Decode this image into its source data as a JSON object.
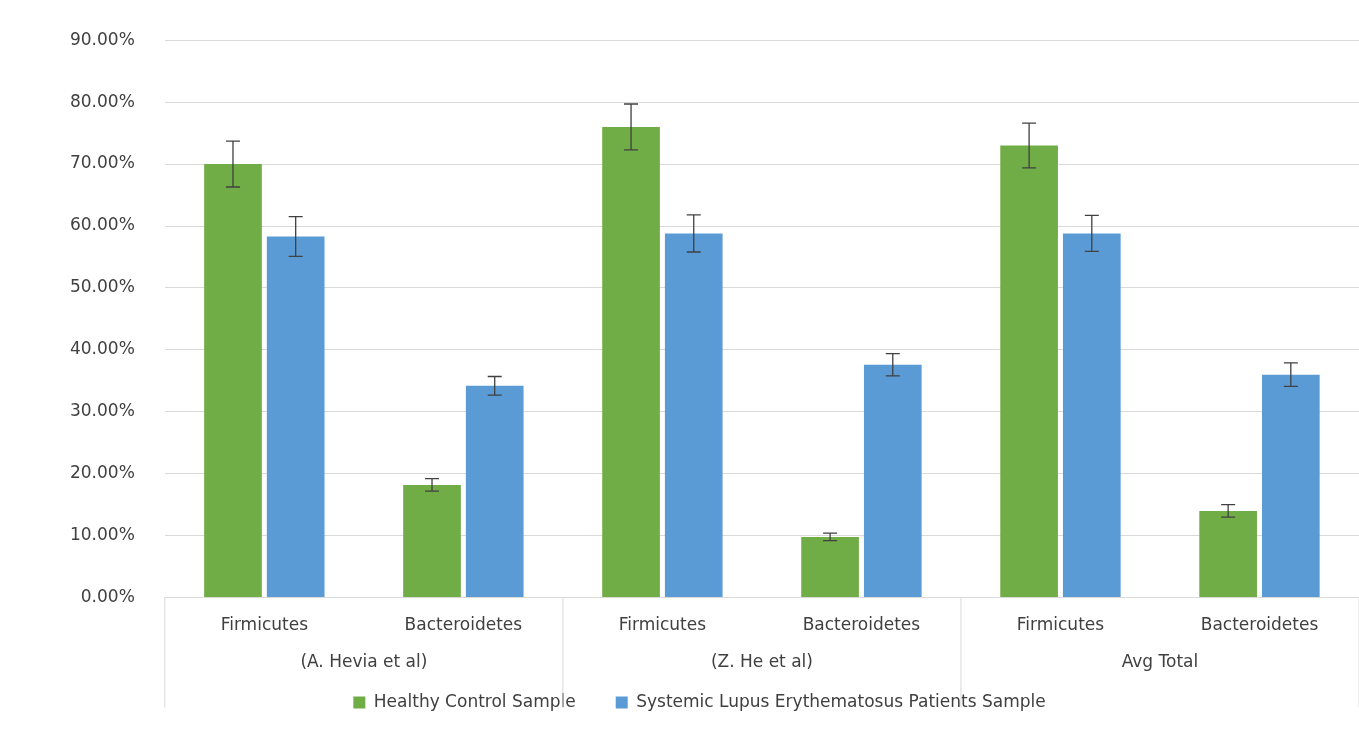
{
  "chart_data": {
    "type": "bar",
    "categories": [
      "Firmicutes",
      "Bacteroidetes",
      "Firmicutes",
      "Bacteroidetes",
      "Firmicutes",
      "Bacteroidetes"
    ],
    "annotations": [
      "(A. Hevia et al)",
      "(Z. He et al)",
      "Avg Total"
    ],
    "series": [
      {
        "name": "Healthy Control Sample",
        "color": "#70ad47",
        "values": [
          70.0,
          18.2,
          76.0,
          9.8,
          73.0,
          14.0
        ],
        "errors": [
          3.7,
          1.0,
          3.7,
          0.6,
          3.6,
          1.0
        ]
      },
      {
        "name": "Systemic Lupus Erythematosus Patients Sample",
        "color": "#5b9bd5",
        "values": [
          58.3,
          34.2,
          58.8,
          37.6,
          58.8,
          36.0
        ],
        "errors": [
          3.2,
          1.5,
          3.0,
          1.8,
          2.9,
          1.9
        ]
      }
    ],
    "ylim": [
      0,
      90
    ],
    "yticks": [
      {
        "value": 0,
        "label": "0.00%"
      },
      {
        "value": 10,
        "label": "10.00%"
      },
      {
        "value": 20,
        "label": "20.00%"
      },
      {
        "value": 30,
        "label": "30.00%"
      },
      {
        "value": 40,
        "label": "40.00%"
      },
      {
        "value": 50,
        "label": "50.00%"
      },
      {
        "value": 60,
        "label": "60.00%"
      },
      {
        "value": 70,
        "label": "70.00%"
      },
      {
        "value": 80,
        "label": "80.00%"
      },
      {
        "value": 90,
        "label": "90.00%"
      }
    ],
    "grid": "y",
    "legend": "bottom"
  }
}
